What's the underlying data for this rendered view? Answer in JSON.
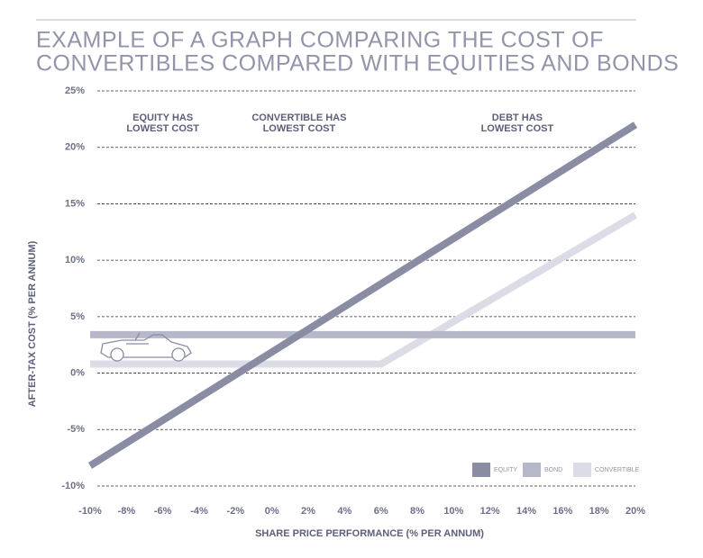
{
  "chart_data": {
    "type": "line",
    "title": [
      "EXAMPLE OF A GRAPH COMPARING THE COST OF",
      "CONVERTIBLES COMPARED WITH EQUITIES AND BONDS"
    ],
    "x_label": "SHARE PRICE PERFORMANCE (% PER ANNUM)",
    "y_label": "AFTER-TAX COST (% PER ANNUM)",
    "annotations": [
      [
        "EQUITY HAS",
        "LOWEST COST"
      ],
      [
        "CONVERTIBLE HAS",
        "LOWEST COST"
      ],
      [
        "DEBT HAS",
        "LOWEST COST"
      ]
    ],
    "xlim": [
      -10,
      20
    ],
    "ylim": [
      -10,
      25
    ],
    "xticks": [
      {
        "value": -10,
        "label": "-10%"
      },
      {
        "value": -8,
        "label": "-8%"
      },
      {
        "value": -6,
        "label": "-6%"
      },
      {
        "value": -4,
        "label": "-4%"
      },
      {
        "value": -2,
        "label": "-2%"
      },
      {
        "value": 0,
        "label": "0%"
      },
      {
        "value": 2,
        "label": "2%"
      },
      {
        "value": 4,
        "label": "4%"
      },
      {
        "value": 6,
        "label": "6%"
      },
      {
        "value": 8,
        "label": "8%"
      },
      {
        "value": 10,
        "label": "10%"
      },
      {
        "value": 12,
        "label": "12%"
      },
      {
        "value": 14,
        "label": "14%"
      },
      {
        "value": 16,
        "label": "16%"
      },
      {
        "value": 18,
        "label": "18%"
      },
      {
        "value": 20,
        "label": "20%"
      }
    ],
    "yticks": [
      {
        "value": -10,
        "label": "-10%"
      },
      {
        "value": -5,
        "label": "-5%"
      },
      {
        "value": 0,
        "label": "0%"
      },
      {
        "value": 5,
        "label": "5%"
      },
      {
        "value": 10,
        "label": "10%"
      },
      {
        "value": 15,
        "label": "15%"
      },
      {
        "value": 20,
        "label": "20%"
      },
      {
        "value": 25,
        "label": "25%"
      }
    ],
    "grid": true,
    "legend": "lower right",
    "series": [
      {
        "name": "EQUITY",
        "color": "#8a8ca3",
        "x": [
          -10,
          20
        ],
        "values": [
          -8.2,
          22
        ]
      },
      {
        "name": "BOND",
        "color": "#b6b8c9",
        "x": [
          -10,
          20
        ],
        "values": [
          3.4,
          3.4
        ]
      },
      {
        "name": "CONVERTIBLE",
        "color": "#dcdce6",
        "x": [
          -10,
          6,
          20
        ],
        "values": [
          0.8,
          0.8,
          14
        ]
      }
    ]
  }
}
